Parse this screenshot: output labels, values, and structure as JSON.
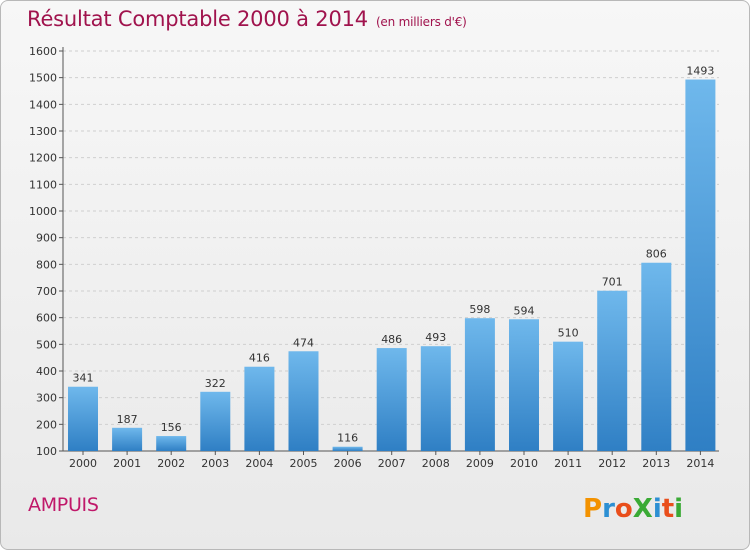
{
  "title": "Résultat Comptable 2000 à 2014",
  "subtitle": "(en milliers d'€)",
  "commune": "AMPUIS",
  "logo_text": "ProXiti",
  "colors": {
    "title": "#a0134d",
    "bar_top": "#6fb8ec",
    "bar_bottom": "#2f7fc4",
    "axis": "#555555",
    "grid": "#cfcfcf"
  },
  "chart_data": {
    "type": "bar",
    "title": "Résultat Comptable 2000 à 2014",
    "subtitle": "(en milliers d'€)",
    "xlabel": "",
    "ylabel": "",
    "categories": [
      "2000",
      "2001",
      "2002",
      "2003",
      "2004",
      "2005",
      "2006",
      "2007",
      "2008",
      "2009",
      "2010",
      "2011",
      "2012",
      "2013",
      "2014"
    ],
    "values": [
      341,
      187,
      156,
      322,
      416,
      474,
      116,
      486,
      493,
      598,
      594,
      510,
      701,
      806,
      1493
    ],
    "ylim": [
      100,
      1600
    ],
    "yticks": [
      100,
      200,
      300,
      400,
      500,
      600,
      700,
      800,
      900,
      1000,
      1100,
      1200,
      1300,
      1400,
      1500,
      1600
    ],
    "grid": true,
    "data_labels": true
  }
}
